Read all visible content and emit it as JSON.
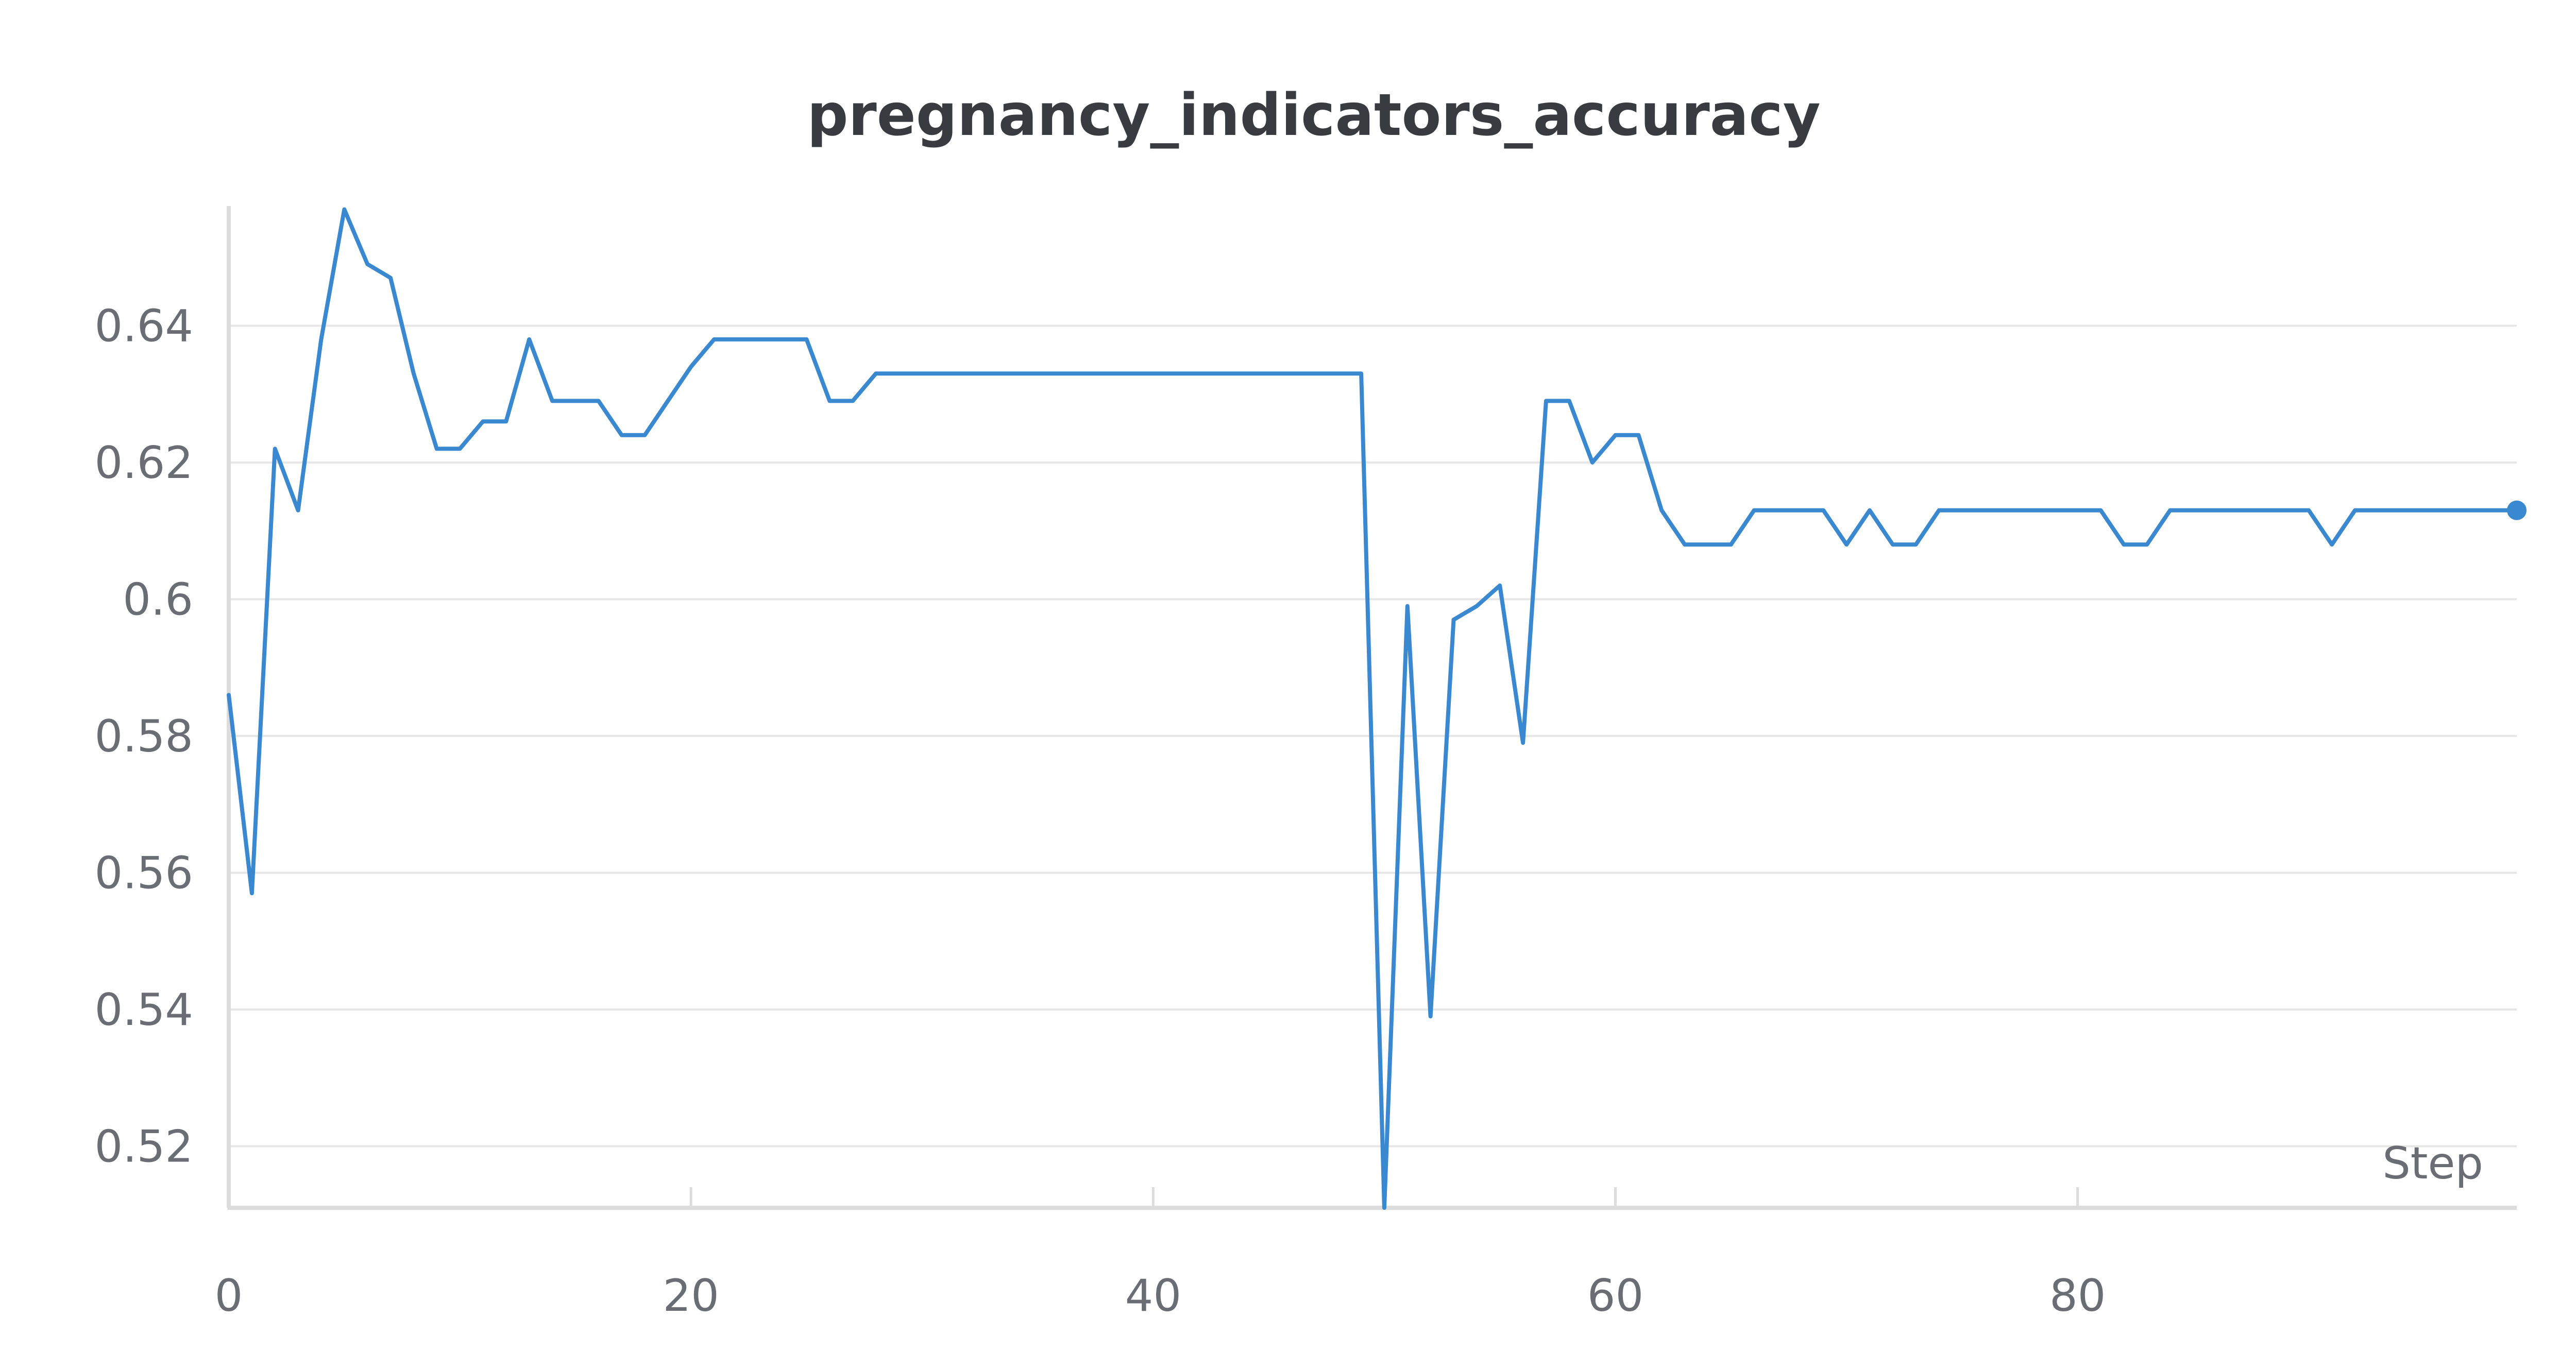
{
  "chart_data": {
    "type": "line",
    "title": "pregnancy_indicators_accuracy",
    "xlabel": "Step",
    "ylabel": "",
    "xlim": [
      0,
      99
    ],
    "ylim": [
      0.511,
      0.6575
    ],
    "x_ticks": [
      0,
      20,
      40,
      60,
      80
    ],
    "y_ticks": [
      0.52,
      0.54,
      0.56,
      0.58,
      0.6,
      0.62,
      0.64
    ],
    "y_tick_labels": [
      "0.52",
      "0.54",
      "0.56",
      "0.58",
      "0.6",
      "0.62",
      "0.64"
    ],
    "x_tick_labels": [
      "0",
      "20",
      "40",
      "60",
      "80"
    ],
    "grid": true,
    "legend": "none",
    "colors": {
      "series": "#3a89d0",
      "grid": "#e6e6e6",
      "axis": "#dcdcdc"
    },
    "series": [
      {
        "x": [
          0,
          1,
          2,
          3,
          4,
          5,
          6,
          7,
          8,
          9,
          10,
          11,
          12,
          13,
          14,
          15,
          16,
          17,
          18,
          19,
          20,
          21,
          22,
          23,
          24,
          25,
          26,
          27,
          28,
          29,
          30,
          31,
          32,
          33,
          34,
          35,
          36,
          37,
          38,
          39,
          40,
          41,
          42,
          43,
          44,
          45,
          46,
          47,
          48,
          49,
          50,
          51,
          52,
          53,
          54,
          55,
          56,
          57,
          58,
          59,
          60,
          61,
          62,
          63,
          64,
          65,
          66,
          67,
          68,
          69,
          70,
          71,
          72,
          73,
          74,
          75,
          76,
          77,
          78,
          79,
          80,
          81,
          82,
          83,
          84,
          85,
          86,
          87,
          88,
          89,
          90,
          91,
          92,
          93,
          94,
          95,
          96,
          97,
          98,
          99
        ],
        "values": [
          0.586,
          0.557,
          0.622,
          0.613,
          0.638,
          0.657,
          0.649,
          0.647,
          0.633,
          0.622,
          0.622,
          0.626,
          0.626,
          0.638,
          0.629,
          0.629,
          0.629,
          0.624,
          0.624,
          0.629,
          0.634,
          0.638,
          0.638,
          0.638,
          0.638,
          0.638,
          0.629,
          0.629,
          0.633,
          0.633,
          0.633,
          0.633,
          0.633,
          0.633,
          0.633,
          0.633,
          0.633,
          0.633,
          0.633,
          0.633,
          0.633,
          0.633,
          0.633,
          0.633,
          0.633,
          0.633,
          0.633,
          0.633,
          0.633,
          0.633,
          0.511,
          0.599,
          0.539,
          0.597,
          0.599,
          0.602,
          0.579,
          0.629,
          0.629,
          0.62,
          0.624,
          0.624,
          0.613,
          0.608,
          0.608,
          0.608,
          0.613,
          0.613,
          0.613,
          0.613,
          0.608,
          0.613,
          0.608,
          0.608,
          0.613,
          0.613,
          0.613,
          0.613,
          0.613,
          0.613,
          0.613,
          0.613,
          0.608,
          0.608,
          0.613,
          0.613,
          0.613,
          0.613,
          0.613,
          0.613,
          0.613,
          0.608,
          0.613,
          0.613,
          0.613,
          0.613,
          0.613,
          0.613,
          0.613,
          0.613
        ]
      }
    ]
  }
}
